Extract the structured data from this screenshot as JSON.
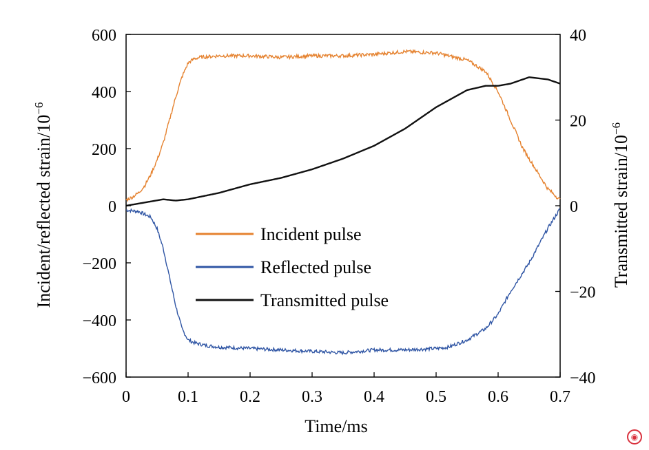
{
  "chart_data": {
    "type": "line",
    "xlabel": "Time/ms",
    "ylabel_left": "Incident/reflected strain/10",
    "ylabel_left_exp": "−6",
    "ylabel_right": "Transmitted strain/10",
    "ylabel_right_exp": "−6",
    "xlim": [
      0,
      0.7
    ],
    "ylim_left": [
      -600,
      600
    ],
    "ylim_right": [
      -40,
      40
    ],
    "x_ticks": [
      "0",
      "0.1",
      "0.2",
      "0.3",
      "0.4",
      "0.5",
      "0.6",
      "0.7"
    ],
    "y_left_ticks": [
      "600",
      "400",
      "200",
      "0",
      "−200",
      "−400",
      "−600"
    ],
    "y_right_ticks": [
      "40",
      "20",
      "0",
      "−20",
      "−40"
    ],
    "legend_position": "center-left",
    "series": [
      {
        "name": "Incident pulse",
        "color": "#e5822f",
        "axis": "left",
        "x": [
          0,
          0.01,
          0.02,
          0.03,
          0.04,
          0.05,
          0.06,
          0.07,
          0.08,
          0.09,
          0.1,
          0.11,
          0.12,
          0.15,
          0.2,
          0.25,
          0.3,
          0.35,
          0.4,
          0.45,
          0.5,
          0.55,
          0.58,
          0.6,
          0.62,
          0.64,
          0.66,
          0.68,
          0.7
        ],
        "y": [
          20,
          30,
          45,
          70,
          110,
          160,
          220,
          300,
          380,
          450,
          500,
          515,
          520,
          525,
          525,
          520,
          525,
          525,
          530,
          540,
          535,
          510,
          470,
          400,
          300,
          200,
          130,
          60,
          20
        ]
      },
      {
        "name": "Reflected pulse",
        "color": "#2f55a4",
        "axis": "left",
        "x": [
          0,
          0.02,
          0.04,
          0.05,
          0.06,
          0.07,
          0.08,
          0.09,
          0.1,
          0.11,
          0.13,
          0.15,
          0.2,
          0.25,
          0.3,
          0.35,
          0.4,
          0.45,
          0.5,
          0.52,
          0.55,
          0.58,
          0.6,
          0.62,
          0.65,
          0.68,
          0.7
        ],
        "y": [
          -15,
          -20,
          -40,
          -80,
          -150,
          -250,
          -350,
          -430,
          -470,
          -480,
          -490,
          -495,
          -500,
          -505,
          -510,
          -515,
          -505,
          -505,
          -500,
          -495,
          -470,
          -430,
          -380,
          -300,
          -200,
          -80,
          -10
        ]
      },
      {
        "name": "Transmitted pulse",
        "color": "#111111",
        "axis": "right",
        "x": [
          0,
          0.02,
          0.04,
          0.06,
          0.08,
          0.1,
          0.15,
          0.2,
          0.25,
          0.3,
          0.35,
          0.4,
          0.45,
          0.5,
          0.55,
          0.58,
          0.6,
          0.62,
          0.65,
          0.68,
          0.7
        ],
        "y": [
          0,
          0.5,
          1,
          1.5,
          1.2,
          1.5,
          3,
          5,
          6.5,
          8.5,
          11,
          14,
          18,
          23,
          27,
          28,
          28,
          28.5,
          30,
          29.5,
          28.5
        ]
      }
    ]
  }
}
